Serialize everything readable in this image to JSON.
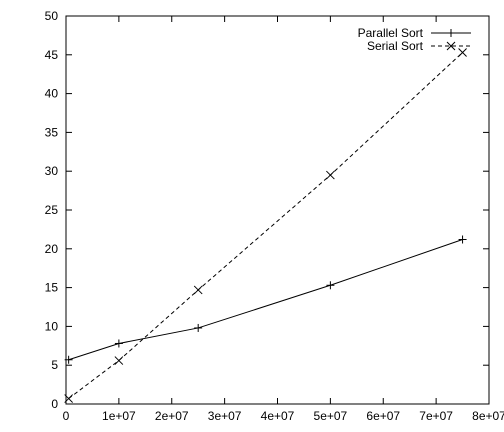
{
  "chart_data": {
    "type": "line",
    "title": "",
    "xlabel": "",
    "ylabel": "",
    "xlim": [
      0,
      80000000
    ],
    "ylim": [
      0,
      50
    ],
    "grid": false,
    "legend_position": "top-right",
    "x_ticks": [
      {
        "value": 0,
        "label": "0"
      },
      {
        "value": 10000000,
        "label": "1e+07"
      },
      {
        "value": 20000000,
        "label": "2e+07"
      },
      {
        "value": 30000000,
        "label": "3e+07"
      },
      {
        "value": 40000000,
        "label": "4e+07"
      },
      {
        "value": 50000000,
        "label": "5e+07"
      },
      {
        "value": 60000000,
        "label": "6e+07"
      },
      {
        "value": 70000000,
        "label": "7e+07"
      },
      {
        "value": 80000000,
        "label": "8e+07"
      }
    ],
    "y_ticks": [
      {
        "value": 0,
        "label": "0"
      },
      {
        "value": 5,
        "label": "5"
      },
      {
        "value": 10,
        "label": "10"
      },
      {
        "value": 15,
        "label": "15"
      },
      {
        "value": 20,
        "label": "20"
      },
      {
        "value": 25,
        "label": "25"
      },
      {
        "value": 30,
        "label": "30"
      },
      {
        "value": 35,
        "label": "35"
      },
      {
        "value": 40,
        "label": "40"
      },
      {
        "value": 45,
        "label": "45"
      },
      {
        "value": 50,
        "label": "50"
      }
    ],
    "series": [
      {
        "name": "Parallel Sort",
        "marker": "plus",
        "line_style": "solid",
        "color": "#000000",
        "points": [
          {
            "x": 500000,
            "y": 5.7
          },
          {
            "x": 10000000,
            "y": 7.8
          },
          {
            "x": 25000000,
            "y": 9.8
          },
          {
            "x": 50000000,
            "y": 15.3
          },
          {
            "x": 75000000,
            "y": 21.2
          }
        ]
      },
      {
        "name": "Serial Sort",
        "marker": "cross",
        "line_style": "dashed",
        "color": "#000000",
        "points": [
          {
            "x": 500000,
            "y": 0.7
          },
          {
            "x": 10000000,
            "y": 5.6
          },
          {
            "x": 25000000,
            "y": 14.7
          },
          {
            "x": 50000000,
            "y": 29.5
          },
          {
            "x": 75000000,
            "y": 45.3
          }
        ]
      }
    ]
  }
}
